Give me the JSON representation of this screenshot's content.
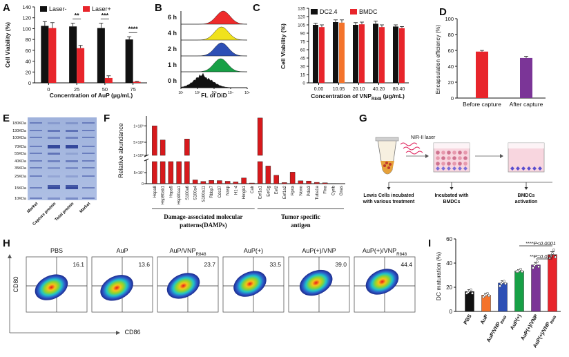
{
  "panels": {
    "A": {
      "letter": "A",
      "ylabel": "Cell Viability (%)",
      "xlabel": "Concentration of AuP (μg/mL)",
      "chart_data": {
        "type": "bar",
        "categories": [
          "0",
          "25",
          "50",
          "75"
        ],
        "series": [
          {
            "name": "Laser-",
            "values": [
              105,
              104,
              101,
              80
            ],
            "errors": [
              8,
              6,
              9,
              5
            ],
            "color": "#111111"
          },
          {
            "name": "Laser+",
            "values": [
              101,
              64,
              9,
              2
            ],
            "errors": [
              10,
              5,
              4,
              1
            ],
            "color": "#e8252b"
          }
        ],
        "yticks": [
          0,
          20,
          40,
          60,
          80,
          100,
          120,
          140
        ],
        "ylim": [
          0,
          140
        ],
        "significance": [
          {
            "category": "25",
            "label": "**"
          },
          {
            "category": "50",
            "label": "***"
          },
          {
            "category": "75",
            "label": "****"
          }
        ]
      }
    },
    "B": {
      "letter": "B",
      "xlabel": "FL of DiD",
      "chart_data": {
        "type": "area",
        "tracks": [
          {
            "label": "6 h",
            "peak_log": 3.55,
            "color": "#ee2b2b"
          },
          {
            "label": "4 h",
            "peak_log": 3.45,
            "color": "#f0e21c"
          },
          {
            "label": "2 h",
            "peak_log": 3.45,
            "color": "#2d4fb5"
          },
          {
            "label": "1 h",
            "peak_log": 3.4,
            "color": "#17a046"
          },
          {
            "label": "0 h",
            "peak_log": 2.4,
            "color": "#111111"
          }
        ],
        "xticks": [
          "10¹",
          "10²",
          "10³",
          "10⁴",
          "10⁵"
        ],
        "xlog_range": [
          1,
          5
        ]
      }
    },
    "C": {
      "letter": "C",
      "ylabel": "Cell Viability (%)",
      "xlabel_main": "Concentration of VNP",
      "xlabel_sub": "R848",
      "xlabel_unit": " (μg/mL)",
      "chart_data": {
        "type": "bar",
        "categories": [
          "0.00",
          "10.05",
          "20.10",
          "40.20",
          "80.40"
        ],
        "series": [
          {
            "name": "DC2.4",
            "values": [
              105,
              110,
              105,
              107,
              102
            ],
            "errors": [
              3,
              4,
              4,
              5,
              3
            ],
            "color": "#111111"
          },
          {
            "name": "BMDC",
            "values": [
              101,
              109,
              106,
              101,
              99
            ],
            "errors": [
              4,
              5,
              4,
              4,
              3
            ],
            "color": "#e8252b"
          }
        ],
        "yticks": [
          0,
          15,
          30,
          45,
          60,
          75,
          90,
          105,
          120,
          135
        ],
        "ylim": [
          0,
          135
        ]
      }
    },
    "D": {
      "letter": "D",
      "ylabel": "Encapsulation efficiency (%)",
      "chart_data": {
        "type": "bar",
        "categories": [
          "Before capture",
          "After capture"
        ],
        "values": [
          58.5,
          50.5
        ],
        "errors": [
          1.5,
          2
        ],
        "colors": [
          "#e8252b",
          "#7b3597"
        ],
        "yticks": [
          0,
          20,
          40,
          60,
          80,
          100
        ],
        "ylim": [
          0,
          100
        ]
      }
    },
    "E": {
      "letter": "E",
      "ladder": [
        "180KDa",
        "130KDa",
        "100KDa",
        "70KDa",
        "55KDa",
        "40KDa",
        "35KDa",
        "25KDa",
        "15KDa",
        "10KDa"
      ],
      "lanes": [
        "Market",
        "Capture protein",
        "Total protein",
        "Market"
      ]
    },
    "F": {
      "letter": "F",
      "ylabel": "Relative abundance",
      "chart_data": {
        "type": "bar",
        "categories": [
          "Hspa8",
          "Hsp90ab1",
          "Hspa5",
          "Hsp90aa1",
          "S100a6",
          "S100a4",
          "S100a11",
          "Rbbp7",
          "Cdc37",
          "Nasp",
          "H1-4",
          "Hmgb1",
          "Calr",
          "Eef1a1",
          "Eef1g",
          "Eef2",
          "Eef1a2",
          "Rpsa",
          "Nono",
          "Pdia3",
          "Tuba1a",
          "Flna",
          "Cyrib",
          "Gnas"
        ],
        "values": [
          1000000000,
          570000000,
          100000000,
          100000000,
          600000000,
          17000000,
          10000000,
          15000000,
          14000000,
          11000000,
          8000000,
          26000000,
          3000000,
          1240000000,
          80000000,
          38000000,
          5000000,
          52000000,
          13000000,
          12000000,
          6000000,
          4000000,
          1000000,
          500000
        ],
        "yticks_low": [
          "0",
          "5×10⁷"
        ],
        "yticks_high": [
          "1×10⁸",
          "5×10⁸",
          "1×10⁹"
        ],
        "groups": [
          {
            "label_line1": "Damage-associated molecular",
            "label_line2": "patterns(DAMPs)"
          },
          {
            "label_line1": "Tumor specific",
            "label_line2": "antigen"
          }
        ]
      }
    },
    "G": {
      "letter": "G",
      "laser_label": "NIR-II laser",
      "steps": [
        {
          "line1": "Lewis Cells incubated",
          "line2": "with  various treatment"
        },
        {
          "line1": "Incubated with",
          "line2": "BMDCs"
        },
        {
          "line1": "BMDCs",
          "line2": "activation"
        }
      ]
    },
    "H": {
      "letter": "H",
      "ylabel": "CD80",
      "xlabel": "CD86",
      "plots": [
        {
          "title": "PBS",
          "value": "16.1"
        },
        {
          "title": "AuP",
          "value": "13.6"
        },
        {
          "title_main": "AuP/VNP",
          "title_sub": "R848",
          "value": "23.7"
        },
        {
          "title": "AuP(+)",
          "value": "33.5"
        },
        {
          "title": "AuP(+)/VNP",
          "value": "39.0"
        },
        {
          "title_main": "AuP(+)/VNP",
          "title_sub": "R848",
          "value": "44.4"
        }
      ]
    },
    "I": {
      "letter": "I",
      "ylabel": "DC maturation (%)",
      "chart_data": {
        "type": "bar",
        "categories": [
          "PBS",
          "AuP",
          "AuP/VNPᵣ₈₄₈",
          "AuP(+)",
          "AuP(+)/VNP",
          "AuP(+)/VNPᵣ₈₄₈"
        ],
        "category_labels": [
          {
            "main": "PBS",
            "sub": ""
          },
          {
            "main": "AuP",
            "sub": ""
          },
          {
            "main": "AuP/VNP",
            "sub": "R848"
          },
          {
            "main": "AuP(+)",
            "sub": ""
          },
          {
            "main": "AuP(+)/VNP",
            "sub": ""
          },
          {
            "main": "AuP(+)/VNP",
            "sub": "R848"
          }
        ],
        "values": [
          16.5,
          13.5,
          23.5,
          33.5,
          38.5,
          47
        ],
        "errors": [
          1.5,
          1.5,
          1.8,
          1,
          2,
          2.5
        ],
        "points": [
          [
            15,
            16,
            17,
            18,
            15
          ],
          [
            12,
            13,
            14,
            15,
            13
          ],
          [
            21,
            23,
            24,
            25,
            23
          ],
          [
            33,
            33,
            34,
            35,
            33
          ],
          [
            36,
            38,
            39,
            41,
            37
          ],
          [
            44,
            46,
            48,
            51,
            45
          ]
        ],
        "colors": [
          "#111111",
          "#f4732b",
          "#2d4fb5",
          "#17a046",
          "#7b3597",
          "#e8252b"
        ],
        "yticks": [
          0,
          20,
          40,
          60
        ],
        "ylim": [
          0,
          60
        ],
        "annotations": [
          {
            "stars": "**",
            "p": "P=0.0157",
            "from": 4,
            "to": 5
          },
          {
            "stars": "****",
            "p": "P<0.0001",
            "from": 3,
            "to": 5
          }
        ]
      }
    }
  }
}
